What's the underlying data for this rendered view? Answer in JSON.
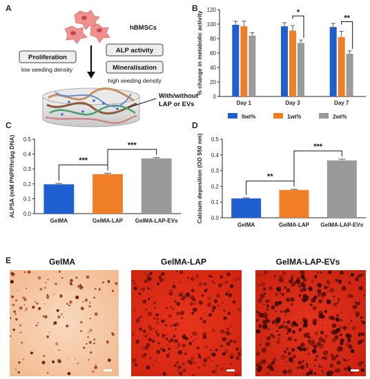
{
  "panels": {
    "A": {
      "label": "A",
      "cells": "hBMSCs",
      "proliferation": "Proliferation",
      "low_density": "low seeding density",
      "alp": "ALP activity",
      "mineralisation": "Mineralisation",
      "high_density": "high seeding density",
      "scaffold_note_1": "With/without",
      "scaffold_note_2": "LAP or EVs"
    },
    "B": {
      "label": "B"
    },
    "C": {
      "label": "C"
    },
    "D": {
      "label": "D"
    },
    "E": {
      "label": "E",
      "titles": [
        "GelMA",
        "GelMA-LAP",
        "GelMA-LAP-EVs"
      ]
    }
  },
  "chart_data": [
    {
      "panel": "B",
      "type": "bar",
      "ylabel": "% change in metabolic activity",
      "ylim": [
        0,
        120
      ],
      "yticks": [
        0,
        20,
        40,
        60,
        80,
        100,
        120
      ],
      "categories": [
        "Day 1",
        "Day 3",
        "Day 7"
      ],
      "series": [
        {
          "name": "0wt%",
          "color": "#1f5fd0",
          "values": [
            99,
            97,
            96
          ],
          "errors": [
            5,
            5,
            5
          ]
        },
        {
          "name": "1wt%",
          "color": "#f07e26",
          "values": [
            97,
            91,
            82
          ],
          "errors": [
            7,
            7,
            8
          ]
        },
        {
          "name": "2wt%",
          "color": "#9a9a9a",
          "values": [
            84,
            74,
            59
          ],
          "errors": [
            4,
            4,
            4
          ]
        }
      ],
      "significance": [
        {
          "category": 1,
          "from": 1,
          "to": 2,
          "text": "*"
        },
        {
          "category": 2,
          "from": 1,
          "to": 2,
          "text": "**"
        }
      ],
      "legend": "bottom"
    },
    {
      "panel": "C",
      "type": "bar",
      "ylabel": "ALPSA (mM PNPP/hr/µg DNA)",
      "ylim": [
        0,
        0.5
      ],
      "yticks": [
        0.0,
        0.1,
        0.2,
        0.3,
        0.4,
        0.5
      ],
      "categories": [
        "GelMA",
        "GelMA-LAP",
        "GelMA-LAP-EVs"
      ],
      "colors": [
        "#1f5fd0",
        "#f07e26",
        "#9a9a9a"
      ],
      "values": [
        0.197,
        0.265,
        0.371
      ],
      "errors": [
        0.006,
        0.007,
        0.005
      ],
      "significance": [
        {
          "from": 0,
          "to": 1,
          "text": "***"
        },
        {
          "from": 1,
          "to": 2,
          "text": "***"
        }
      ]
    },
    {
      "panel": "D",
      "type": "bar",
      "ylabel": "Calcium deposition (OD 550 nm)",
      "ylim": [
        0,
        0.5
      ],
      "yticks": [
        0.0,
        0.1,
        0.2,
        0.3,
        0.4,
        0.5
      ],
      "categories": [
        "GelMA",
        "GelMA-LAP",
        "GelMA-LAP-EVs"
      ],
      "colors": [
        "#1f5fd0",
        "#f07e26",
        "#9a9a9a"
      ],
      "values": [
        0.123,
        0.177,
        0.365
      ],
      "errors": [
        0.004,
        0.004,
        0.008
      ],
      "significance": [
        {
          "from": 0,
          "to": 1,
          "text": "**"
        },
        {
          "from": 1,
          "to": 2,
          "text": "***"
        }
      ]
    }
  ]
}
